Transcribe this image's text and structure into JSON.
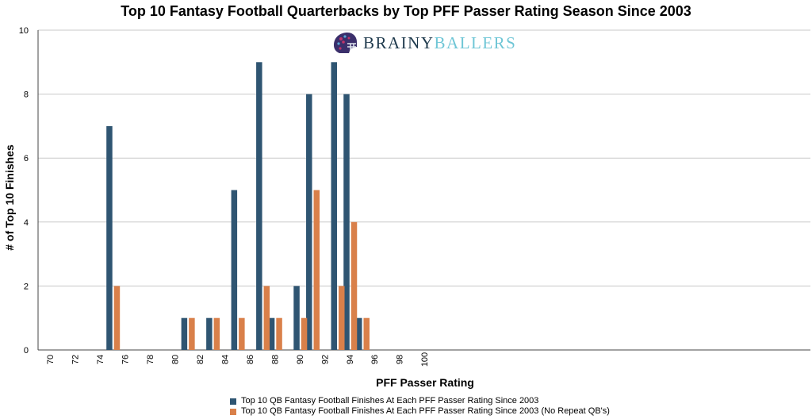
{
  "chart_data": {
    "type": "bar",
    "title": "Top 10 Fantasy Football Quarterbacks by Top PFF Passer Rating Season Since 2003",
    "xlabel": "PFF Passer Rating",
    "ylabel": "# of Top 10 Finishes",
    "xlim": [
      70,
      100
    ],
    "ylim": [
      0,
      10
    ],
    "xticks": [
      70,
      72,
      74,
      76,
      78,
      80,
      82,
      84,
      86,
      88,
      90,
      92,
      94,
      96,
      98,
      100
    ],
    "yticks": [
      0,
      2,
      4,
      6,
      8,
      10
    ],
    "grid": "horizontal",
    "legend_position": "bottom",
    "categories": [
      75,
      81,
      83,
      85,
      87,
      88,
      90,
      91,
      93,
      94,
      95
    ],
    "series": [
      {
        "name": "Top 10 QB Fantasy Football Finishes At Each PFF Passer Rating Since 2003",
        "color": "#2f5572",
        "values": [
          7,
          1,
          1,
          5,
          9,
          1,
          2,
          8,
          9,
          8,
          1
        ]
      },
      {
        "name": "Top 10 QB Fantasy Football Finishes At Each PFF Passer Rating Since 2003 (No Repeat QB's)",
        "color": "#d9804a",
        "values": [
          2,
          1,
          1,
          1,
          2,
          1,
          1,
          5,
          2,
          4,
          1
        ]
      }
    ]
  },
  "logo": {
    "text_a": "BRAINY",
    "text_b": "BALLERS",
    "icon": "football-helmet-icon"
  }
}
